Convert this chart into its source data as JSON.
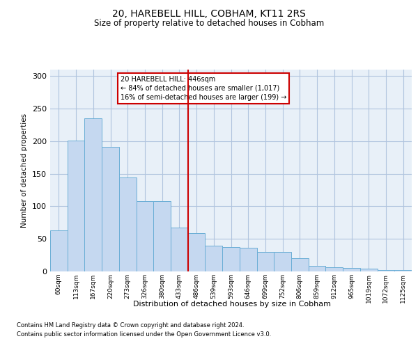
{
  "title": "20, HAREBELL HILL, COBHAM, KT11 2RS",
  "subtitle": "Size of property relative to detached houses in Cobham",
  "xlabel": "Distribution of detached houses by size in Cobham",
  "ylabel": "Number of detached properties",
  "categories": [
    "60sqm",
    "113sqm",
    "167sqm",
    "220sqm",
    "273sqm",
    "326sqm",
    "380sqm",
    "433sqm",
    "486sqm",
    "539sqm",
    "593sqm",
    "646sqm",
    "699sqm",
    "752sqm",
    "806sqm",
    "859sqm",
    "912sqm",
    "965sqm",
    "1019sqm",
    "1072sqm",
    "1125sqm"
  ],
  "values": [
    63,
    201,
    235,
    191,
    144,
    108,
    108,
    67,
    59,
    40,
    37,
    36,
    30,
    30,
    20,
    9,
    6,
    5,
    4,
    2,
    2
  ],
  "bar_color": "#c5d8f0",
  "bar_edge_color": "#6aaed6",
  "vline_x_index": 7,
  "vline_color": "#cc0000",
  "annotation_text": "20 HAREBELL HILL: 446sqm\n← 84% of detached houses are smaller (1,017)\n16% of semi-detached houses are larger (199) →",
  "annotation_box_color": "#ffffff",
  "annotation_box_edge_color": "#cc0000",
  "ylim": [
    0,
    310
  ],
  "yticks": [
    0,
    50,
    100,
    150,
    200,
    250,
    300
  ],
  "grid_color": "#b0c4de",
  "background_color": "#e8f0f8",
  "footer_line1": "Contains HM Land Registry data © Crown copyright and database right 2024.",
  "footer_line2": "Contains public sector information licensed under the Open Government Licence v3.0."
}
